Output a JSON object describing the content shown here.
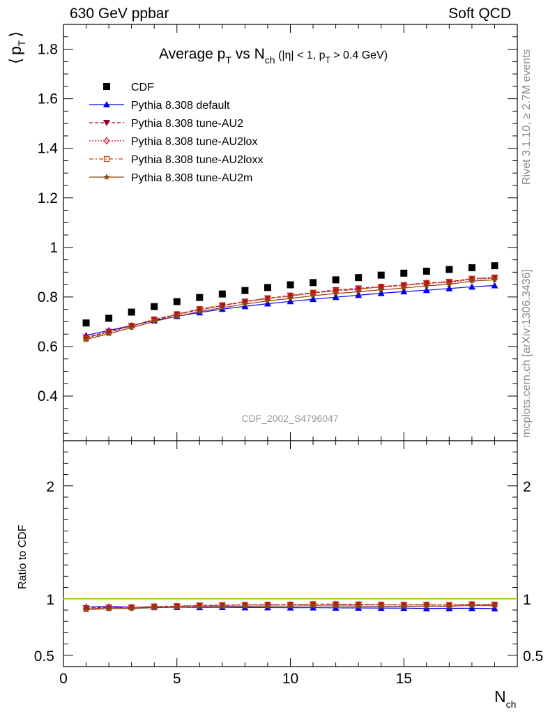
{
  "header": {
    "left": "630 GeV ppbar",
    "right": "Soft QCD"
  },
  "side_labels": {
    "rivet": "Rivet 3.1.10, ≥ 2.7M events",
    "mcplots": "mcplots.cern.ch [arXiv:1306.3436]"
  },
  "chart_data": {
    "type": "scatter",
    "title": "Average p_T vs N_ch (|η| < 1, p_T > 0.4 GeV)",
    "title_parts": {
      "main": "Average p",
      "main_sub": "T",
      "vs": " vs N",
      "vs_sub": "ch",
      "cond_a": " (|η| < 1, p",
      "cond_sub": "T",
      "cond_b": " > 0.4 GeV)"
    },
    "watermark": "CDF_2002_S4796047",
    "ylabel": "⟨ p_T ⟩",
    "ylabel_parts": {
      "open": "⟨",
      "p": "p",
      "sub": "T",
      "close": "⟩"
    },
    "xlabel": "N_ch",
    "xlabel_parts": {
      "main": "N",
      "sub": "ch"
    },
    "ratio_ylabel": "Ratio to CDF",
    "xlim": [
      0,
      20
    ],
    "ylim": [
      0.22,
      1.9
    ],
    "ratio_ylim": [
      0.4,
      2.4
    ],
    "x_ticks": [
      "0",
      "5",
      "10",
      "15"
    ],
    "y_ticks": [
      "0.4",
      "0.6",
      "0.8",
      "1",
      "1.2",
      "1.4",
      "1.6",
      "1.8"
    ],
    "ratio_ticks": [
      "0.5",
      "1",
      "2"
    ],
    "x": [
      1,
      2,
      3,
      4,
      5,
      6,
      7,
      8,
      9,
      10,
      11,
      12,
      13,
      14,
      15,
      16,
      17,
      18,
      19
    ],
    "series": [
      {
        "name": "CDF",
        "color": "#000000",
        "marker": "square",
        "line": "none",
        "values": [
          0.695,
          0.714,
          0.739,
          0.761,
          0.781,
          0.798,
          0.812,
          0.826,
          0.838,
          0.849,
          0.858,
          0.869,
          0.878,
          0.888,
          0.896,
          0.904,
          0.911,
          0.918,
          0.926
        ]
      },
      {
        "name": "Pythia 8.308 default",
        "color": "#0000ee",
        "marker": "triangle-up",
        "line": "solid",
        "values": [
          0.645,
          0.665,
          0.685,
          0.705,
          0.722,
          0.737,
          0.751,
          0.762,
          0.773,
          0.782,
          0.791,
          0.799,
          0.807,
          0.815,
          0.822,
          0.827,
          0.834,
          0.841,
          0.846
        ]
      },
      {
        "name": "Pythia 8.308 tune-AU2",
        "color": "#990033",
        "marker": "triangle-down",
        "line": "dashed",
        "values": [
          0.638,
          0.66,
          0.683,
          0.707,
          0.729,
          0.749,
          0.765,
          0.781,
          0.795,
          0.806,
          0.818,
          0.828,
          0.835,
          0.842,
          0.849,
          0.856,
          0.862,
          0.874,
          0.878
        ]
      },
      {
        "name": "Pythia 8.308 tune-AU2lox",
        "color": "#cc0033",
        "marker": "diamond-open",
        "line": "dotted",
        "values": [
          0.635,
          0.658,
          0.682,
          0.707,
          0.729,
          0.748,
          0.765,
          0.78,
          0.793,
          0.804,
          0.815,
          0.826,
          0.832,
          0.84,
          0.846,
          0.855,
          0.858,
          0.872,
          0.875
        ]
      },
      {
        "name": "Pythia 8.308 tune-AU2loxx",
        "color": "#cc4400",
        "marker": "square-open",
        "line": "dashdot",
        "values": [
          0.632,
          0.657,
          0.684,
          0.71,
          0.731,
          0.752,
          0.767,
          0.782,
          0.795,
          0.804,
          0.817,
          0.824,
          0.831,
          0.841,
          0.848,
          0.857,
          0.861,
          0.873,
          0.879
        ]
      },
      {
        "name": "Pythia 8.308 tune-AU2m",
        "color": "#8b4513",
        "marker": "star",
        "line": "solid",
        "values": [
          0.628,
          0.652,
          0.676,
          0.701,
          0.722,
          0.741,
          0.757,
          0.771,
          0.784,
          0.794,
          0.805,
          0.814,
          0.821,
          0.829,
          0.836,
          0.845,
          0.851,
          0.864,
          0.869
        ]
      }
    ]
  }
}
